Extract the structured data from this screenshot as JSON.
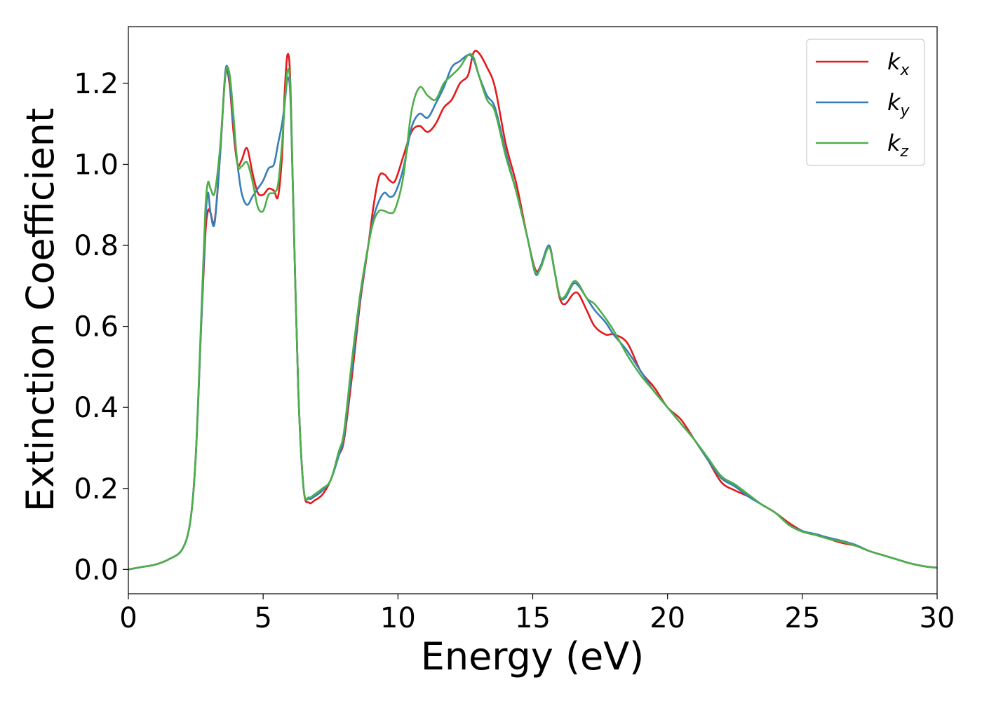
{
  "chart_data": {
    "type": "line",
    "xlabel": "Energy (eV)",
    "ylabel": "Extinction Coefficient",
    "xlim": [
      0,
      30
    ],
    "ylim": [
      -0.06,
      1.34
    ],
    "xticks": [
      0,
      5,
      10,
      15,
      20,
      25,
      30
    ],
    "yticks": [
      0.0,
      0.2,
      0.4,
      0.6,
      0.8,
      1.0,
      1.2
    ],
    "xtick_labels": [
      "0",
      "5",
      "10",
      "15",
      "20",
      "25",
      "30"
    ],
    "ytick_labels": [
      "0.0",
      "0.2",
      "0.4",
      "0.6",
      "0.8",
      "1.0",
      "1.2"
    ],
    "grid": false,
    "legend_position": "top-right",
    "series": [
      {
        "name": "k_x",
        "label_base": "k",
        "label_sub": "x",
        "color": "#e41a1c",
        "points": [
          [
            0,
            0.0
          ],
          [
            0.5,
            0.006
          ],
          [
            1.0,
            0.012
          ],
          [
            1.5,
            0.025
          ],
          [
            2.0,
            0.05
          ],
          [
            2.3,
            0.12
          ],
          [
            2.5,
            0.28
          ],
          [
            2.7,
            0.6
          ],
          [
            2.85,
            0.82
          ],
          [
            2.95,
            0.885
          ],
          [
            3.05,
            0.88
          ],
          [
            3.2,
            0.86
          ],
          [
            3.4,
            1.02
          ],
          [
            3.6,
            1.22
          ],
          [
            3.75,
            1.2
          ],
          [
            3.9,
            1.08
          ],
          [
            4.05,
            1.0
          ],
          [
            4.2,
            1.01
          ],
          [
            4.4,
            1.04
          ],
          [
            4.6,
            0.98
          ],
          [
            4.8,
            0.93
          ],
          [
            5.0,
            0.925
          ],
          [
            5.2,
            0.94
          ],
          [
            5.4,
            0.935
          ],
          [
            5.55,
            0.92
          ],
          [
            5.7,
            1.02
          ],
          [
            5.8,
            1.18
          ],
          [
            5.9,
            1.27
          ],
          [
            6.0,
            1.22
          ],
          [
            6.1,
            0.95
          ],
          [
            6.3,
            0.45
          ],
          [
            6.5,
            0.2
          ],
          [
            6.7,
            0.165
          ],
          [
            6.9,
            0.17
          ],
          [
            7.2,
            0.185
          ],
          [
            7.5,
            0.22
          ],
          [
            7.8,
            0.28
          ],
          [
            8.0,
            0.32
          ],
          [
            8.3,
            0.48
          ],
          [
            8.6,
            0.66
          ],
          [
            8.9,
            0.8
          ],
          [
            9.1,
            0.9
          ],
          [
            9.3,
            0.97
          ],
          [
            9.5,
            0.975
          ],
          [
            9.7,
            0.96
          ],
          [
            9.9,
            0.96
          ],
          [
            10.2,
            1.02
          ],
          [
            10.5,
            1.08
          ],
          [
            10.8,
            1.095
          ],
          [
            11.1,
            1.08
          ],
          [
            11.4,
            1.1
          ],
          [
            11.7,
            1.14
          ],
          [
            12.0,
            1.16
          ],
          [
            12.3,
            1.2
          ],
          [
            12.6,
            1.22
          ],
          [
            12.8,
            1.275
          ],
          [
            13.0,
            1.275
          ],
          [
            13.3,
            1.24
          ],
          [
            13.6,
            1.19
          ],
          [
            14.0,
            1.05
          ],
          [
            14.4,
            0.95
          ],
          [
            14.8,
            0.82
          ],
          [
            15.1,
            0.74
          ],
          [
            15.3,
            0.75
          ],
          [
            15.6,
            0.8
          ],
          [
            15.8,
            0.74
          ],
          [
            16.0,
            0.67
          ],
          [
            16.2,
            0.655
          ],
          [
            16.5,
            0.68
          ],
          [
            16.7,
            0.68
          ],
          [
            17.0,
            0.64
          ],
          [
            17.3,
            0.6
          ],
          [
            17.7,
            0.58
          ],
          [
            18.0,
            0.58
          ],
          [
            18.5,
            0.56
          ],
          [
            19.0,
            0.49
          ],
          [
            19.5,
            0.45
          ],
          [
            20.0,
            0.4
          ],
          [
            20.5,
            0.37
          ],
          [
            21.0,
            0.32
          ],
          [
            21.5,
            0.27
          ],
          [
            22.0,
            0.215
          ],
          [
            22.5,
            0.195
          ],
          [
            23.0,
            0.18
          ],
          [
            23.5,
            0.16
          ],
          [
            24.0,
            0.14
          ],
          [
            24.5,
            0.115
          ],
          [
            25.0,
            0.095
          ],
          [
            25.5,
            0.085
          ],
          [
            26.0,
            0.075
          ],
          [
            26.5,
            0.065
          ],
          [
            27.0,
            0.058
          ],
          [
            27.5,
            0.045
          ],
          [
            28.0,
            0.035
          ],
          [
            28.5,
            0.025
          ],
          [
            29.0,
            0.015
          ],
          [
            29.5,
            0.008
          ],
          [
            30.0,
            0.004
          ]
        ]
      },
      {
        "name": "k_y",
        "label_base": "k",
        "label_sub": "y",
        "color": "#377eb8",
        "points": [
          [
            0,
            0.0
          ],
          [
            0.5,
            0.006
          ],
          [
            1.0,
            0.012
          ],
          [
            1.5,
            0.025
          ],
          [
            2.0,
            0.05
          ],
          [
            2.3,
            0.12
          ],
          [
            2.5,
            0.28
          ],
          [
            2.7,
            0.6
          ],
          [
            2.85,
            0.85
          ],
          [
            2.95,
            0.93
          ],
          [
            3.05,
            0.88
          ],
          [
            3.2,
            0.855
          ],
          [
            3.4,
            1.02
          ],
          [
            3.6,
            1.23
          ],
          [
            3.75,
            1.21
          ],
          [
            3.9,
            1.1
          ],
          [
            4.05,
            1.0
          ],
          [
            4.2,
            0.93
          ],
          [
            4.4,
            0.9
          ],
          [
            4.6,
            0.92
          ],
          [
            4.8,
            0.94
          ],
          [
            5.0,
            0.96
          ],
          [
            5.2,
            0.99
          ],
          [
            5.4,
            1.0
          ],
          [
            5.55,
            1.05
          ],
          [
            5.7,
            1.1
          ],
          [
            5.8,
            1.15
          ],
          [
            5.9,
            1.21
          ],
          [
            6.0,
            1.18
          ],
          [
            6.1,
            0.95
          ],
          [
            6.3,
            0.45
          ],
          [
            6.5,
            0.2
          ],
          [
            6.7,
            0.175
          ],
          [
            6.9,
            0.18
          ],
          [
            7.2,
            0.195
          ],
          [
            7.5,
            0.22
          ],
          [
            7.8,
            0.28
          ],
          [
            8.0,
            0.33
          ],
          [
            8.3,
            0.5
          ],
          [
            8.6,
            0.67
          ],
          [
            8.9,
            0.8
          ],
          [
            9.1,
            0.87
          ],
          [
            9.3,
            0.91
          ],
          [
            9.5,
            0.93
          ],
          [
            9.7,
            0.92
          ],
          [
            9.9,
            0.93
          ],
          [
            10.2,
            0.99
          ],
          [
            10.5,
            1.09
          ],
          [
            10.8,
            1.125
          ],
          [
            11.1,
            1.115
          ],
          [
            11.4,
            1.15
          ],
          [
            11.7,
            1.19
          ],
          [
            12.0,
            1.24
          ],
          [
            12.3,
            1.255
          ],
          [
            12.6,
            1.27
          ],
          [
            12.8,
            1.26
          ],
          [
            13.0,
            1.22
          ],
          [
            13.3,
            1.17
          ],
          [
            13.6,
            1.14
          ],
          [
            14.0,
            1.03
          ],
          [
            14.4,
            0.93
          ],
          [
            14.8,
            0.82
          ],
          [
            15.1,
            0.73
          ],
          [
            15.3,
            0.75
          ],
          [
            15.6,
            0.8
          ],
          [
            15.8,
            0.74
          ],
          [
            16.0,
            0.675
          ],
          [
            16.2,
            0.67
          ],
          [
            16.5,
            0.705
          ],
          [
            16.7,
            0.7
          ],
          [
            17.0,
            0.67
          ],
          [
            17.3,
            0.64
          ],
          [
            17.7,
            0.61
          ],
          [
            18.0,
            0.58
          ],
          [
            18.5,
            0.54
          ],
          [
            19.0,
            0.49
          ],
          [
            19.5,
            0.44
          ],
          [
            20.0,
            0.4
          ],
          [
            20.5,
            0.36
          ],
          [
            21.0,
            0.32
          ],
          [
            21.5,
            0.27
          ],
          [
            22.0,
            0.225
          ],
          [
            22.5,
            0.205
          ],
          [
            23.0,
            0.18
          ],
          [
            23.5,
            0.16
          ],
          [
            24.0,
            0.14
          ],
          [
            24.5,
            0.11
          ],
          [
            25.0,
            0.095
          ],
          [
            25.5,
            0.087
          ],
          [
            26.0,
            0.078
          ],
          [
            26.5,
            0.07
          ],
          [
            27.0,
            0.06
          ],
          [
            27.5,
            0.045
          ],
          [
            28.0,
            0.035
          ],
          [
            28.5,
            0.025
          ],
          [
            29.0,
            0.015
          ],
          [
            29.5,
            0.008
          ],
          [
            30.0,
            0.004
          ]
        ]
      },
      {
        "name": "k_z",
        "label_base": "k",
        "label_sub": "z",
        "color": "#4daf4a",
        "points": [
          [
            0,
            0.0
          ],
          [
            0.5,
            0.006
          ],
          [
            1.0,
            0.012
          ],
          [
            1.5,
            0.025
          ],
          [
            2.0,
            0.05
          ],
          [
            2.3,
            0.12
          ],
          [
            2.5,
            0.28
          ],
          [
            2.7,
            0.62
          ],
          [
            2.85,
            0.88
          ],
          [
            2.95,
            0.955
          ],
          [
            3.05,
            0.94
          ],
          [
            3.2,
            0.93
          ],
          [
            3.4,
            1.04
          ],
          [
            3.6,
            1.22
          ],
          [
            3.75,
            1.225
          ],
          [
            3.9,
            1.12
          ],
          [
            4.05,
            1.0
          ],
          [
            4.2,
            0.995
          ],
          [
            4.4,
            1.005
          ],
          [
            4.6,
            0.96
          ],
          [
            4.8,
            0.895
          ],
          [
            5.0,
            0.885
          ],
          [
            5.2,
            0.925
          ],
          [
            5.4,
            0.93
          ],
          [
            5.55,
            0.95
          ],
          [
            5.7,
            1.05
          ],
          [
            5.8,
            1.15
          ],
          [
            5.9,
            1.23
          ],
          [
            6.0,
            1.2
          ],
          [
            6.1,
            0.96
          ],
          [
            6.3,
            0.45
          ],
          [
            6.5,
            0.2
          ],
          [
            6.7,
            0.178
          ],
          [
            6.9,
            0.185
          ],
          [
            7.2,
            0.2
          ],
          [
            7.5,
            0.22
          ],
          [
            7.8,
            0.29
          ],
          [
            8.0,
            0.34
          ],
          [
            8.3,
            0.52
          ],
          [
            8.6,
            0.68
          ],
          [
            8.9,
            0.8
          ],
          [
            9.1,
            0.86
          ],
          [
            9.3,
            0.885
          ],
          [
            9.5,
            0.885
          ],
          [
            9.7,
            0.88
          ],
          [
            9.9,
            0.89
          ],
          [
            10.2,
            0.97
          ],
          [
            10.5,
            1.13
          ],
          [
            10.8,
            1.19
          ],
          [
            11.1,
            1.17
          ],
          [
            11.4,
            1.16
          ],
          [
            11.7,
            1.2
          ],
          [
            12.0,
            1.22
          ],
          [
            12.3,
            1.24
          ],
          [
            12.6,
            1.27
          ],
          [
            12.8,
            1.265
          ],
          [
            13.0,
            1.22
          ],
          [
            13.3,
            1.16
          ],
          [
            13.6,
            1.13
          ],
          [
            14.0,
            1.02
          ],
          [
            14.4,
            0.93
          ],
          [
            14.8,
            0.82
          ],
          [
            15.1,
            0.735
          ],
          [
            15.3,
            0.745
          ],
          [
            15.6,
            0.795
          ],
          [
            15.8,
            0.74
          ],
          [
            16.0,
            0.675
          ],
          [
            16.2,
            0.675
          ],
          [
            16.5,
            0.71
          ],
          [
            16.7,
            0.705
          ],
          [
            17.0,
            0.67
          ],
          [
            17.3,
            0.655
          ],
          [
            17.7,
            0.62
          ],
          [
            18.0,
            0.59
          ],
          [
            18.5,
            0.53
          ],
          [
            19.0,
            0.48
          ],
          [
            19.5,
            0.44
          ],
          [
            20.0,
            0.4
          ],
          [
            20.5,
            0.36
          ],
          [
            21.0,
            0.32
          ],
          [
            21.5,
            0.275
          ],
          [
            22.0,
            0.23
          ],
          [
            22.5,
            0.21
          ],
          [
            23.0,
            0.185
          ],
          [
            23.5,
            0.16
          ],
          [
            24.0,
            0.14
          ],
          [
            24.5,
            0.11
          ],
          [
            25.0,
            0.093
          ],
          [
            25.5,
            0.085
          ],
          [
            26.0,
            0.075
          ],
          [
            26.5,
            0.068
          ],
          [
            27.0,
            0.058
          ],
          [
            27.5,
            0.045
          ],
          [
            28.0,
            0.035
          ],
          [
            28.5,
            0.025
          ],
          [
            29.0,
            0.015
          ],
          [
            29.5,
            0.008
          ],
          [
            30.0,
            0.004
          ]
        ]
      }
    ]
  }
}
